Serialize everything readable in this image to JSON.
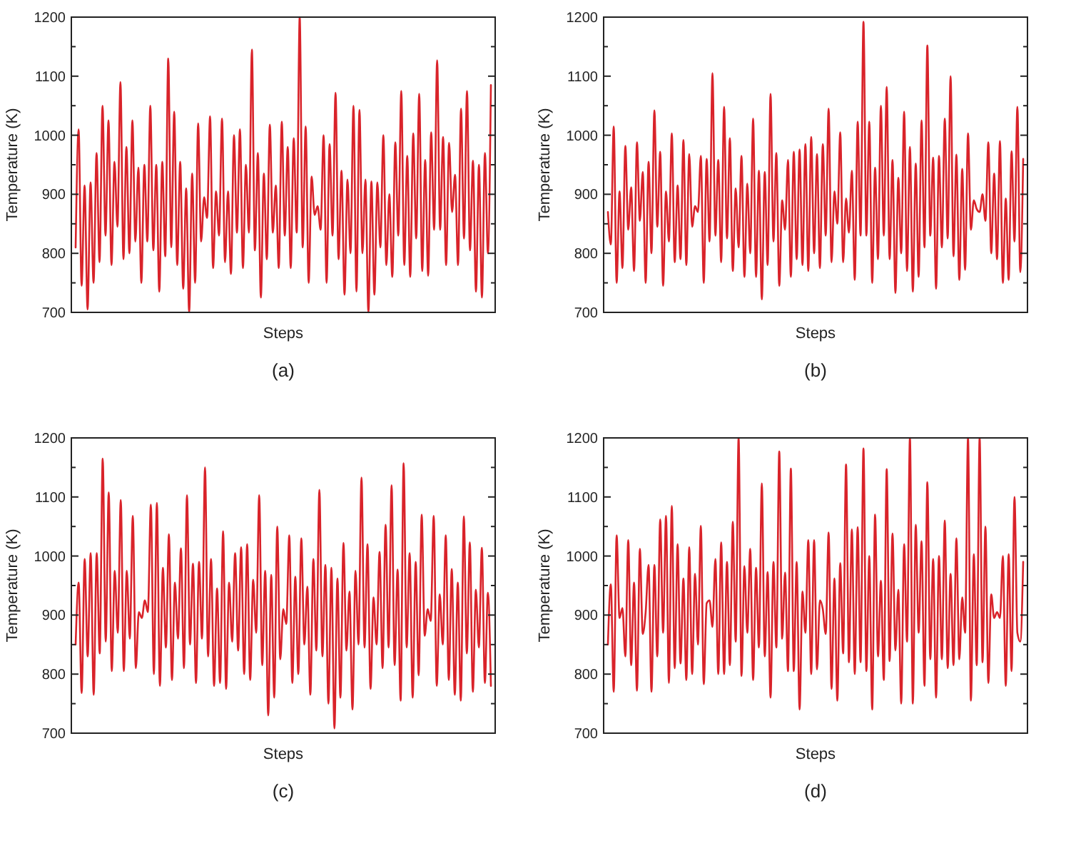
{
  "chart_data": [
    {
      "type": "line",
      "xlabel": "Steps",
      "ylabel": "Temperature (K)",
      "annotations": [
        "(a)"
      ],
      "ylim": [
        700,
        1200
      ],
      "yticks": [
        700,
        {
          "value": 750,
          "label": null
        },
        800,
        {
          "value": 850,
          "label": null
        },
        900,
        {
          "value": 950,
          "label": null
        },
        1000,
        {
          "value": 1050,
          "label": null
        },
        1100,
        {
          "value": 1150,
          "label": null
        },
        1200
      ],
      "grid": false,
      "marker": "none",
      "line_style": "solid",
      "categories": [
        null,
        null,
        null,
        null,
        null,
        null,
        null,
        null,
        null,
        null,
        null,
        null,
        null,
        null,
        null,
        null,
        null,
        null,
        null,
        null,
        null,
        null,
        null,
        null,
        null,
        null,
        null,
        null,
        null,
        null,
        null,
        null,
        null,
        null,
        null,
        null,
        null,
        null,
        null,
        null,
        null,
        null,
        null,
        null,
        null,
        null,
        null,
        null,
        null,
        null,
        null,
        null,
        null,
        null,
        null,
        null,
        null,
        null,
        null,
        null,
        null,
        null,
        null,
        null,
        null,
        null,
        null,
        null,
        null,
        null,
        null,
        null,
        null,
        null,
        null,
        null,
        null,
        null,
        null,
        null,
        null,
        null,
        null,
        null,
        null,
        null,
        null,
        null,
        null,
        null,
        null,
        null,
        null,
        null,
        null,
        null,
        null,
        null,
        null,
        null,
        null,
        null,
        null,
        null,
        null,
        null,
        null,
        null,
        null,
        null,
        null,
        null,
        null,
        null,
        null,
        null,
        null,
        null,
        null,
        null,
        null,
        null,
        null,
        null,
        null,
        null,
        null,
        null,
        null,
        null,
        null,
        null,
        null,
        null,
        null,
        null,
        null,
        null,
        null,
        null
      ],
      "series": [
        {
          "color": "#d9232a",
          "values": [
            810,
            1010,
            745,
            915,
            705,
            920,
            750,
            970,
            785,
            1050,
            830,
            1025,
            780,
            955,
            845,
            1090,
            790,
            980,
            800,
            1025,
            820,
            945,
            750,
            950,
            820,
            1050,
            805,
            950,
            735,
            955,
            795,
            1130,
            810,
            1040,
            780,
            955,
            740,
            910,
            700,
            935,
            750,
            1020,
            820,
            895,
            860,
            1032,
            775,
            905,
            830,
            1028,
            785,
            905,
            765,
            1000,
            835,
            1010,
            775,
            950,
            835,
            1145,
            805,
            970,
            725,
            935,
            790,
            1018,
            835,
            915,
            775,
            1023,
            830,
            980,
            775,
            995,
            835,
            1200,
            810,
            1015,
            750,
            930,
            865,
            880,
            840,
            1000,
            750,
            985,
            830,
            1072,
            790,
            940,
            730,
            925,
            800,
            1050,
            735,
            1043,
            800,
            925,
            700,
            922,
            730,
            920,
            810,
            1000,
            780,
            900,
            760,
            988,
            830,
            1075,
            780,
            965,
            760,
            1003,
            825,
            1070,
            770,
            958,
            762,
            1005,
            840,
            1127,
            840,
            997,
            780,
            987,
            870,
            933,
            780,
            1045,
            825,
            1075,
            805,
            957,
            735,
            950,
            725,
            970,
            800,
            1085
          ]
        }
      ]
    },
    {
      "type": "line",
      "xlabel": "Steps",
      "ylabel": "Temperature (K)",
      "annotations": [
        "(b)"
      ],
      "ylim": [
        700,
        1200
      ],
      "yticks": [
        700,
        {
          "value": 750,
          "label": null
        },
        800,
        {
          "value": 850,
          "label": null
        },
        900,
        {
          "value": 950,
          "label": null
        },
        1000,
        {
          "value": 1050,
          "label": null
        },
        1100,
        {
          "value": 1150,
          "label": null
        },
        1200
      ],
      "grid": false,
      "marker": "none",
      "line_style": "solid",
      "categories": [
        null,
        null,
        null,
        null,
        null,
        null,
        null,
        null,
        null,
        null,
        null,
        null,
        null,
        null,
        null,
        null,
        null,
        null,
        null,
        null,
        null,
        null,
        null,
        null,
        null,
        null,
        null,
        null,
        null,
        null,
        null,
        null,
        null,
        null,
        null,
        null,
        null,
        null,
        null,
        null,
        null,
        null,
        null,
        null,
        null,
        null,
        null,
        null,
        null,
        null,
        null,
        null,
        null,
        null,
        null,
        null,
        null,
        null,
        null,
        null,
        null,
        null,
        null,
        null,
        null,
        null,
        null,
        null,
        null,
        null,
        null,
        null,
        null,
        null,
        null,
        null,
        null,
        null,
        null,
        null,
        null,
        null,
        null,
        null,
        null,
        null,
        null,
        null,
        null,
        null,
        null,
        null,
        null,
        null,
        null,
        null,
        null,
        null,
        null,
        null,
        null,
        null,
        null,
        null,
        null,
        null,
        null,
        null,
        null,
        null,
        null,
        null,
        null,
        null,
        null,
        null,
        null,
        null,
        null,
        null,
        null,
        null,
        null,
        null,
        null,
        null,
        null,
        null,
        null,
        null,
        null,
        null,
        null,
        null,
        null,
        null,
        null,
        null,
        null,
        null,
        null,
        null,
        null,
        null
      ],
      "series": [
        {
          "color": "#d9232a",
          "values": [
            870,
            815,
            1015,
            750,
            905,
            775,
            982,
            840,
            912,
            770,
            988,
            855,
            938,
            750,
            955,
            800,
            1042,
            845,
            972,
            745,
            905,
            820,
            1003,
            785,
            915,
            790,
            992,
            780,
            968,
            845,
            880,
            870,
            965,
            750,
            960,
            820,
            1105,
            830,
            958,
            785,
            1048,
            825,
            995,
            770,
            910,
            810,
            965,
            760,
            918,
            800,
            1028,
            760,
            940,
            722,
            938,
            780,
            1070,
            820,
            970,
            745,
            890,
            840,
            958,
            760,
            972,
            790,
            976,
            780,
            985,
            770,
            997,
            800,
            968,
            775,
            985,
            830,
            1045,
            785,
            905,
            850,
            1005,
            785,
            893,
            835,
            940,
            755,
            1023,
            830,
            1192,
            830,
            1023,
            750,
            945,
            790,
            1050,
            830,
            1082,
            790,
            958,
            733,
            928,
            800,
            1040,
            770,
            980,
            735,
            952,
            760,
            1025,
            810,
            1152,
            830,
            962,
            740,
            965,
            810,
            1028,
            825,
            1100,
            795,
            967,
            755,
            943,
            772,
            1003,
            840,
            890,
            875,
            870,
            900,
            855,
            988,
            800,
            935,
            790,
            990,
            750,
            893,
            755,
            973,
            820,
            1048,
            768,
            960
          ]
        }
      ]
    },
    {
      "type": "line",
      "xlabel": "Steps",
      "ylabel": "Temperature (K)",
      "annotations": [
        "(c)"
      ],
      "ylim": [
        700,
        1200
      ],
      "yticks": [
        700,
        {
          "value": 750,
          "label": null
        },
        800,
        {
          "value": 850,
          "label": null
        },
        900,
        {
          "value": 950,
          "label": null
        },
        1000,
        {
          "value": 1050,
          "label": null
        },
        1100,
        {
          "value": 1150,
          "label": null
        },
        1200
      ],
      "grid": false,
      "marker": "none",
      "line_style": "solid",
      "categories": [
        null,
        null,
        null,
        null,
        null,
        null,
        null,
        null,
        null,
        null,
        null,
        null,
        null,
        null,
        null,
        null,
        null,
        null,
        null,
        null,
        null,
        null,
        null,
        null,
        null,
        null,
        null,
        null,
        null,
        null,
        null,
        null,
        null,
        null,
        null,
        null,
        null,
        null,
        null,
        null,
        null,
        null,
        null,
        null,
        null,
        null,
        null,
        null,
        null,
        null,
        null,
        null,
        null,
        null,
        null,
        null,
        null,
        null,
        null,
        null,
        null,
        null,
        null,
        null,
        null,
        null,
        null,
        null,
        null,
        null,
        null,
        null,
        null,
        null,
        null,
        null,
        null,
        null,
        null,
        null,
        null,
        null,
        null,
        null,
        null,
        null,
        null,
        null,
        null,
        null,
        null,
        null,
        null,
        null,
        null,
        null,
        null,
        null,
        null,
        null,
        null,
        null,
        null,
        null,
        null,
        null,
        null,
        null,
        null,
        null,
        null,
        null,
        null,
        null,
        null,
        null,
        null,
        null,
        null,
        null,
        null,
        null,
        null,
        null,
        null,
        null,
        null,
        null,
        null,
        null,
        null,
        null,
        null,
        null,
        null,
        null,
        null,
        null,
        null
      ],
      "series": [
        {
          "color": "#d9232a",
          "values": [
            850,
            955,
            768,
            995,
            830,
            1005,
            765,
            1005,
            835,
            1165,
            855,
            1108,
            805,
            975,
            870,
            1095,
            805,
            975,
            860,
            1068,
            810,
            905,
            895,
            925,
            905,
            1087,
            800,
            1090,
            780,
            980,
            845,
            1037,
            790,
            955,
            860,
            1013,
            810,
            1103,
            850,
            987,
            785,
            990,
            860,
            1150,
            830,
            995,
            780,
            945,
            785,
            1042,
            775,
            955,
            855,
            1005,
            840,
            1015,
            800,
            1020,
            790,
            960,
            870,
            1103,
            815,
            975,
            730,
            968,
            760,
            1050,
            825,
            910,
            885,
            1035,
            785,
            965,
            800,
            1030,
            850,
            948,
            765,
            995,
            840,
            1112,
            830,
            985,
            750,
            980,
            708,
            962,
            760,
            1022,
            840,
            940,
            740,
            975,
            850,
            1133,
            845,
            1020,
            775,
            930,
            850,
            1007,
            810,
            1053,
            845,
            1120,
            815,
            977,
            755,
            1157,
            845,
            1005,
            760,
            990,
            798,
            1070,
            865,
            910,
            890,
            1068,
            780,
            935,
            850,
            1035,
            790,
            978,
            765,
            955,
            755,
            1067,
            835,
            1023,
            770,
            943,
            845,
            1014,
            785,
            938,
            780
          ]
        }
      ]
    },
    {
      "type": "line",
      "xlabel": "Steps",
      "ylabel": "Temperature (K)",
      "annotations": [
        "(d)"
      ],
      "ylim": [
        700,
        1200
      ],
      "yticks": [
        700,
        {
          "value": 750,
          "label": null
        },
        800,
        {
          "value": 850,
          "label": null
        },
        900,
        {
          "value": 950,
          "label": null
        },
        1000,
        {
          "value": 1050,
          "label": null
        },
        1100,
        {
          "value": 1150,
          "label": null
        },
        1200
      ],
      "grid": false,
      "marker": "none",
      "line_style": "solid",
      "categories": [
        null,
        null,
        null,
        null,
        null,
        null,
        null,
        null,
        null,
        null,
        null,
        null,
        null,
        null,
        null,
        null,
        null,
        null,
        null,
        null,
        null,
        null,
        null,
        null,
        null,
        null,
        null,
        null,
        null,
        null,
        null,
        null,
        null,
        null,
        null,
        null,
        null,
        null,
        null,
        null,
        null,
        null,
        null,
        null,
        null,
        null,
        null,
        null,
        null,
        null,
        null,
        null,
        null,
        null,
        null,
        null,
        null,
        null,
        null,
        null,
        null,
        null,
        null,
        null,
        null,
        null,
        null,
        null,
        null,
        null,
        null,
        null,
        null,
        null,
        null,
        null,
        null,
        null,
        null,
        null,
        null,
        null,
        null,
        null,
        null,
        null,
        null,
        null,
        null,
        null,
        null,
        null,
        null,
        null,
        null,
        null,
        null,
        null,
        null,
        null,
        null,
        null,
        null,
        null,
        null,
        null,
        null,
        null,
        null,
        null,
        null,
        null,
        null,
        null,
        null,
        null,
        null,
        null,
        null,
        null,
        null,
        null,
        null,
        null,
        null,
        null,
        null,
        null,
        null,
        null,
        null,
        null,
        null,
        null,
        null,
        null,
        null,
        null,
        null,
        null,
        null,
        null,
        null,
        null
      ],
      "series": [
        {
          "color": "#d9232a",
          "values": [
            850,
            952,
            770,
            1035,
            895,
            912,
            830,
            1027,
            815,
            955,
            772,
            1012,
            868,
            905,
            985,
            770,
            985,
            830,
            1062,
            870,
            1068,
            785,
            1085,
            810,
            1020,
            818,
            962,
            790,
            1015,
            800,
            970,
            850,
            1051,
            783,
            920,
            925,
            880,
            995,
            800,
            1023,
            800,
            990,
            815,
            1058,
            855,
            1200,
            797,
            983,
            870,
            1012,
            790,
            980,
            845,
            1123,
            830,
            973,
            760,
            990,
            845,
            1177,
            860,
            972,
            805,
            1148,
            805,
            990,
            740,
            940,
            870,
            1027,
            800,
            1027,
            808,
            925,
            910,
            868,
            1040,
            775,
            962,
            755,
            988,
            835,
            1155,
            820,
            1045,
            800,
            1049,
            820,
            1182,
            805,
            1000,
            740,
            1070,
            830,
            958,
            790,
            1147,
            822,
            1038,
            840,
            943,
            750,
            1020,
            855,
            1200,
            750,
            1053,
            870,
            1025,
            780,
            1125,
            825,
            995,
            760,
            1000,
            825,
            1060,
            810,
            970,
            815,
            1030,
            825,
            930,
            870,
            1200,
            755,
            1003,
            815,
            1200,
            820,
            1050,
            785,
            935,
            895,
            905,
            895,
            1000,
            780,
            1003,
            805,
            1100,
            870,
            855,
            990
          ]
        }
      ]
    }
  ]
}
